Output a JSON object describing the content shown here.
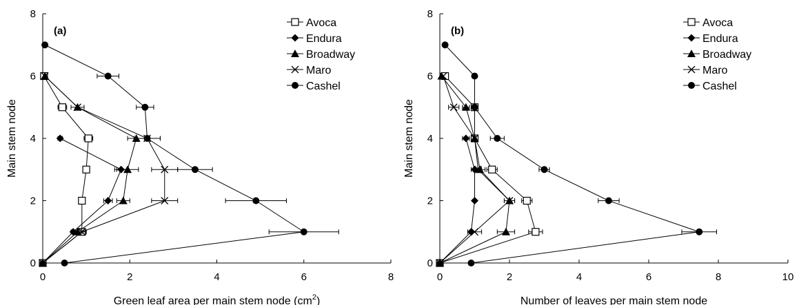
{
  "chart_data": [
    {
      "type": "line",
      "panel_label": "(a)",
      "xlabel": "Green leaf area per main stem node (cm",
      "xlabel_sup": "2",
      "xlabel_end": ")",
      "ylabel": "Main stem node",
      "xlim": [
        0,
        8
      ],
      "ylim": [
        0,
        8
      ],
      "xticks": [
        0,
        2,
        4,
        6,
        8
      ],
      "yticks": [
        0,
        2,
        4,
        6,
        8
      ],
      "legend_position": "top-right",
      "series": [
        {
          "name": "Avoca",
          "marker": "open-square",
          "x": [
            0,
            0.9,
            0.9,
            1.0,
            1.05,
            0.45,
            0.03
          ],
          "y": [
            0,
            1,
            2,
            3,
            4,
            5,
            6
          ],
          "xerr": [
            0,
            0.1,
            0,
            0,
            0.1,
            0.1,
            0
          ]
        },
        {
          "name": "Endura",
          "marker": "filled-diamond",
          "x": [
            0,
            0.7,
            1.5,
            1.8,
            0.4
          ],
          "y": [
            0,
            1,
            2,
            3,
            4
          ],
          "xerr": [
            0,
            0.05,
            0.1,
            0.15,
            0.05
          ]
        },
        {
          "name": "Broadway",
          "marker": "filled-triangle",
          "x": [
            0,
            0.8,
            1.85,
            1.95,
            2.15,
            0.8,
            0.05
          ],
          "y": [
            0,
            1,
            2,
            3,
            4,
            5,
            6
          ],
          "xerr": [
            0,
            0.1,
            0.15,
            0.25,
            0.2,
            0.15,
            0
          ]
        },
        {
          "name": "Maro",
          "marker": "x",
          "x": [
            0,
            0.9,
            2.8,
            2.8,
            2.4,
            0.8,
            0.05
          ],
          "y": [
            0,
            1,
            2,
            3,
            4,
            5,
            6
          ],
          "xerr": [
            0,
            0.1,
            0.3,
            0.3,
            0.3,
            0,
            0
          ]
        },
        {
          "name": "Cashel",
          "marker": "filled-circle",
          "x": [
            0.5,
            6.0,
            4.9,
            3.5,
            2.4,
            2.35,
            1.5,
            0.05
          ],
          "y": [
            0,
            1,
            2,
            3,
            4,
            5,
            6,
            7
          ],
          "xerr": [
            0,
            0.8,
            0.7,
            0.4,
            0.3,
            0.2,
            0.25,
            0
          ]
        }
      ]
    },
    {
      "type": "line",
      "panel_label": "(b)",
      "xlabel": "Number of leaves per main stem node",
      "ylabel": "Main stem node",
      "xlim": [
        0,
        10
      ],
      "ylim": [
        0,
        8
      ],
      "xticks": [
        0,
        2,
        4,
        6,
        8,
        10
      ],
      "yticks": [
        0,
        2,
        4,
        6,
        8
      ],
      "legend_position": "top-right",
      "series": [
        {
          "name": "Avoca",
          "marker": "open-square",
          "x": [
            0,
            2.75,
            2.5,
            1.5,
            1.0,
            1.0,
            0.15
          ],
          "y": [
            0,
            1,
            2,
            3,
            4,
            5,
            6
          ],
          "xerr": [
            0,
            0.2,
            0.15,
            0.15,
            0,
            0,
            0
          ]
        },
        {
          "name": "Endura",
          "marker": "filled-diamond",
          "x": [
            0,
            0.9,
            1.0,
            1.0,
            0.75
          ],
          "y": [
            0,
            1,
            2,
            3,
            4
          ],
          "xerr": [
            0,
            0,
            0,
            0.1,
            0.1
          ]
        },
        {
          "name": "Broadway",
          "marker": "filled-triangle",
          "x": [
            0,
            1.9,
            2.0,
            1.15,
            1.0,
            0.75,
            0.05
          ],
          "y": [
            0,
            1,
            2,
            3,
            4,
            5,
            6
          ],
          "xerr": [
            0,
            0.25,
            0.15,
            0.15,
            0,
            0.1,
            0
          ]
        },
        {
          "name": "Maro",
          "marker": "x",
          "x": [
            0,
            1.0,
            2.0,
            1.1,
            1.0,
            0.4,
            0.1
          ],
          "y": [
            0,
            1,
            2,
            3,
            4,
            5,
            6
          ],
          "xerr": [
            0,
            0.2,
            0.15,
            0.1,
            0,
            0.15,
            0
          ]
        },
        {
          "name": "Cashel",
          "marker": "filled-circle",
          "x": [
            0.9,
            7.45,
            4.85,
            3.0,
            1.65,
            1.0,
            1.0,
            0.15
          ],
          "y": [
            0,
            1,
            2,
            3,
            4,
            5,
            6,
            7
          ],
          "xerr": [
            0,
            0.5,
            0.3,
            0.15,
            0.2,
            0,
            0,
            0.05
          ]
        }
      ]
    }
  ]
}
